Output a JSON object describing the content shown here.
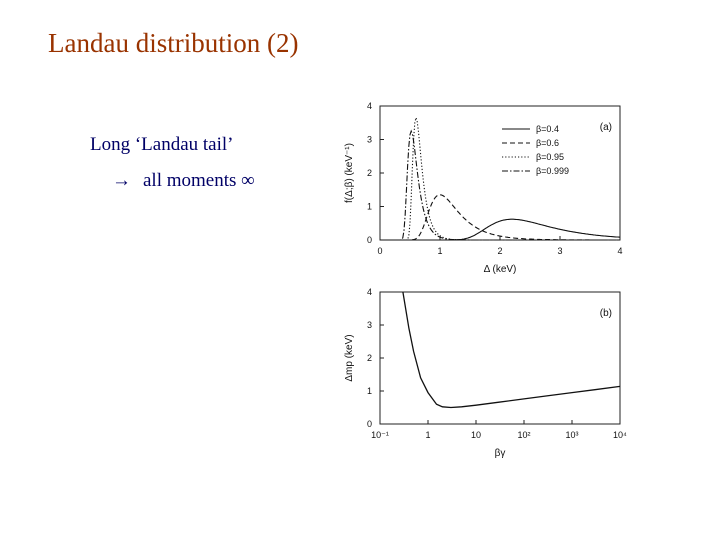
{
  "slide": {
    "title": "Landau distribution  (2)",
    "bullet1": "Long ‘Landau tail’",
    "bullet2_arrow": "→",
    "bullet2_text": "all moments ∞"
  },
  "chart_data": [
    {
      "type": "line",
      "panel_label": "(a)",
      "xlabel": "Δ   (keV)",
      "ylabel": "f(Δ;β)   (keV⁻¹)",
      "xlim": [
        0,
        4
      ],
      "ylim": [
        0,
        4
      ],
      "xticks": [
        "0",
        "1",
        "2",
        "3",
        "4"
      ],
      "yticks": [
        "0",
        "1",
        "2",
        "3",
        "4"
      ],
      "grid": false,
      "legend_position": "top-right",
      "series": [
        {
          "name": "β=0.4",
          "style": "solid",
          "peak_x": 2.2,
          "peak_y": 0.62,
          "width": 0.36
        },
        {
          "name": "β=0.6",
          "style": "dashed",
          "peak_x": 1.0,
          "peak_y": 1.35,
          "width": 0.17
        },
        {
          "name": "β=0.95",
          "style": "dotted",
          "peak_x": 0.6,
          "peak_y": 3.65,
          "width": 0.052
        },
        {
          "name": "β=0.999",
          "style": "dashdot",
          "peak_x": 0.52,
          "peak_y": 3.25,
          "width": 0.058
        }
      ]
    },
    {
      "type": "line",
      "panel_label": "(b)",
      "xlabel": "βγ",
      "ylabel": "Δmp   (keV)",
      "xscale": "log",
      "xlim": [
        0.1,
        10000
      ],
      "ylim": [
        0,
        4
      ],
      "xticks": [
        "10⁻¹",
        "1",
        "10",
        "10²",
        "10³",
        "10⁴"
      ],
      "yticks": [
        "0",
        "1",
        "2",
        "3",
        "4"
      ],
      "grid": false,
      "series": [
        {
          "name": "",
          "style": "solid",
          "x": [
            0.3,
            0.4,
            0.5,
            0.7,
            1.0,
            1.5,
            2.0,
            3.0,
            5.0,
            10,
            30,
            100,
            300,
            1000,
            3000,
            10000
          ],
          "y": [
            4.0,
            2.9,
            2.2,
            1.4,
            0.95,
            0.6,
            0.52,
            0.5,
            0.52,
            0.57,
            0.66,
            0.76,
            0.85,
            0.95,
            1.04,
            1.14
          ]
        }
      ]
    }
  ]
}
